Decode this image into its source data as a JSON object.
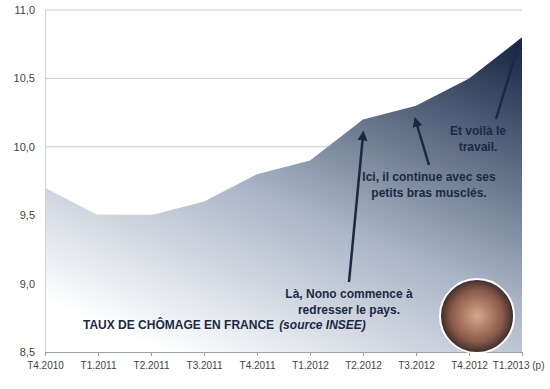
{
  "chart_data": {
    "type": "area",
    "title": "TAUX DE CHÔMAGE EN FRANCE",
    "subtitle": "(source INSEE)",
    "categories": [
      "T4.2010",
      "T1.2011",
      "T2.2011",
      "T3.2011",
      "T4.2011",
      "T1.2012",
      "T2.2012",
      "T3.2012",
      "T4.2012",
      "T1.2013 (p)"
    ],
    "values": [
      9.7,
      9.5,
      9.5,
      9.6,
      9.8,
      9.9,
      10.2,
      10.3,
      10.5,
      10.8
    ],
    "color": "#1f2d4a",
    "ylim": [
      8.5,
      11.0
    ],
    "yticks": [
      {
        "value": 8.5,
        "label": "8,5"
      },
      {
        "value": 9.0,
        "label": "9,0"
      },
      {
        "value": 9.5,
        "label": "9,5"
      },
      {
        "value": 10.0,
        "label": "10,0"
      },
      {
        "value": 10.5,
        "label": "10,5"
      },
      {
        "value": 11.0,
        "label": "11,0"
      }
    ],
    "grid": true,
    "annotations": [
      {
        "text": [
          "Là, Nono commence à",
          "redresser le pays."
        ],
        "x": "T2.2012"
      },
      {
        "text": [
          "Ici, il continue avec ses",
          "petits bras musclés."
        ],
        "x": "T3.2012"
      },
      {
        "text": [
          "Et voilà le",
          "travail."
        ],
        "x": "T1.2013 (p)"
      }
    ]
  }
}
